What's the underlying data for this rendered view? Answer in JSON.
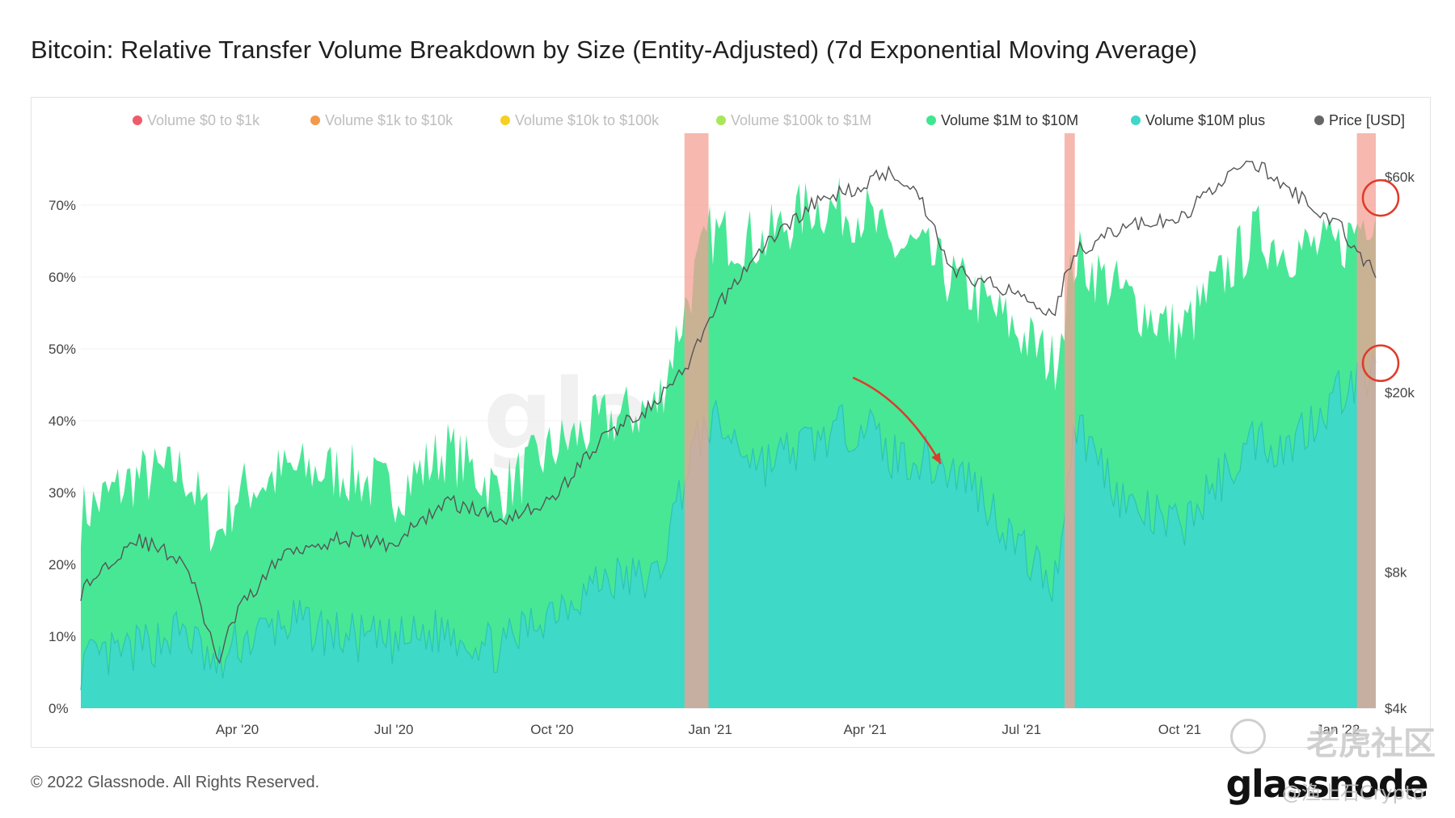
{
  "title": "Bitcoin: Relative Transfer Volume Breakdown by Size (Entity-Adjusted) (7d Exponential Moving Average)",
  "footer": "© 2022 Glassnode. All Rights Reserved.",
  "logo": "glassnode",
  "watermark_text": "glassnode",
  "watermark_overlay": "老虎社区",
  "watermark_handle": "@渔上石Crypto",
  "colors": {
    "volume_0_1k": "#ef5b6b",
    "volume_1k_10k": "#f2994a",
    "volume_10k_100k": "#f5d020",
    "volume_100k_1m": "#a8e65a",
    "volume_1m_10m": "#3ee68f",
    "volume_10m_plus": "#3ed8c8",
    "price": "#555555",
    "highlight_band": "#f4a094",
    "annotation": "#e03a2a"
  },
  "legend": [
    {
      "label": "Volume $0 to $1k",
      "color": "#ef5b6b",
      "active": false
    },
    {
      "label": "Volume $1k to $10k",
      "color": "#f2994a",
      "active": false
    },
    {
      "label": "Volume $10k to $100k",
      "color": "#f5d020",
      "active": false
    },
    {
      "label": "Volume $100k to $1M",
      "color": "#a8e65a",
      "active": false
    },
    {
      "label": "Volume $1M to $10M",
      "color": "#3ee68f",
      "active": true
    },
    {
      "label": "Volume $10M plus",
      "color": "#3ed8c8",
      "active": true
    },
    {
      "label": "Price [USD]",
      "color": "#666666",
      "active": true
    }
  ],
  "chart_data": {
    "type": "area",
    "x_tick_labels": [
      "Apr '20",
      "Jul '20",
      "Oct '20",
      "Jan '21",
      "Apr '21",
      "Jul '21",
      "Oct '21",
      "Jan '22"
    ],
    "y_left": {
      "ticks": [
        "0%",
        "10%",
        "20%",
        "30%",
        "40%",
        "50%",
        "60%",
        "70%"
      ],
      "range": [
        0,
        80
      ]
    },
    "y_right": {
      "scale": "log",
      "ticks": [
        "$4k",
        "$8k",
        "$20k",
        "$60k"
      ],
      "range": [
        4000,
        75000
      ]
    },
    "x": [
      "2020-01-01",
      "2020-02-01",
      "2020-03-01",
      "2020-03-20",
      "2020-04-01",
      "2020-05-01",
      "2020-06-01",
      "2020-07-01",
      "2020-08-01",
      "2020-09-01",
      "2020-10-01",
      "2020-11-01",
      "2020-12-01",
      "2020-12-20",
      "2021-01-01",
      "2021-02-01",
      "2021-03-01",
      "2021-04-01",
      "2021-04-15",
      "2021-05-01",
      "2021-05-20",
      "2021-06-01",
      "2021-07-01",
      "2021-07-20",
      "2021-08-01",
      "2021-09-01",
      "2021-10-01",
      "2021-11-01",
      "2021-11-15",
      "2021-12-01",
      "2022-01-01",
      "2022-01-23"
    ],
    "series": [
      {
        "name": "Volume $10M plus",
        "unit": "%",
        "values": [
          6,
          8,
          11,
          5,
          9,
          12,
          10,
          9,
          11,
          8,
          14,
          18,
          18,
          35,
          40,
          34,
          37,
          40,
          35,
          35,
          33,
          32,
          22,
          17,
          40,
          28,
          25,
          34,
          38,
          36,
          44,
          47
        ]
      },
      {
        "name": "Volume $1M to $10M",
        "unit": "%",
        "values": [
          27,
          32,
          33,
          24,
          30,
          33,
          33,
          30,
          36,
          30,
          36,
          40,
          42,
          58,
          66,
          65,
          70,
          69,
          64,
          64,
          60,
          58,
          52,
          48,
          63,
          57,
          52,
          62,
          66,
          64,
          64,
          70
        ]
      },
      {
        "name": "Price [USD]",
        "unit": "USD",
        "values": [
          7200,
          9500,
          8500,
          5000,
          6500,
          9000,
          9500,
          9200,
          11500,
          10500,
          11500,
          16000,
          19000,
          23000,
          29000,
          42000,
          52000,
          58000,
          62000,
          56000,
          38000,
          36000,
          33000,
          30000,
          41000,
          47000,
          48000,
          62000,
          64000,
          57000,
          47000,
          36000
        ]
      }
    ],
    "highlight_periods": [
      [
        "2020-12-17",
        "2020-12-31"
      ],
      [
        "2021-07-26",
        "2021-08-01"
      ],
      [
        "2022-01-12",
        "2022-01-23"
      ]
    ],
    "annotations": [
      {
        "type": "arrow",
        "from": "2021-03-25",
        "from_y": 46,
        "to": "2021-05-15",
        "to_y": 34
      },
      {
        "type": "circle",
        "at": "2022-01-23",
        "y": 71
      },
      {
        "type": "circle",
        "at": "2022-01-23",
        "y": 48
      }
    ],
    "grid": "horizontal",
    "legend_position": "top"
  }
}
